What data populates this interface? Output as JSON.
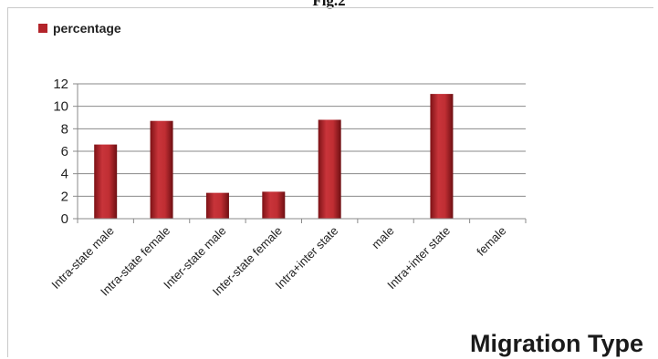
{
  "figure_title": "Fig.2",
  "chart_data": {
    "type": "bar",
    "categories": [
      "Intra-state male",
      "Intra-state female",
      "Inter-state male",
      "Inter-state female",
      "Intra+inter state",
      "male",
      "Intra+inter state",
      "female"
    ],
    "series": [
      {
        "name": "percentage",
        "values": [
          6.6,
          8.7,
          2.3,
          2.4,
          8.8,
          null,
          11.1,
          null
        ],
        "color": "#b3242a"
      }
    ],
    "yticks": [
      0,
      2,
      4,
      6,
      8,
      10,
      12
    ],
    "ylim": [
      0,
      12
    ],
    "xlabel": "Migration Type",
    "ylabel": "",
    "grid": true,
    "legend_position": "top-left"
  }
}
